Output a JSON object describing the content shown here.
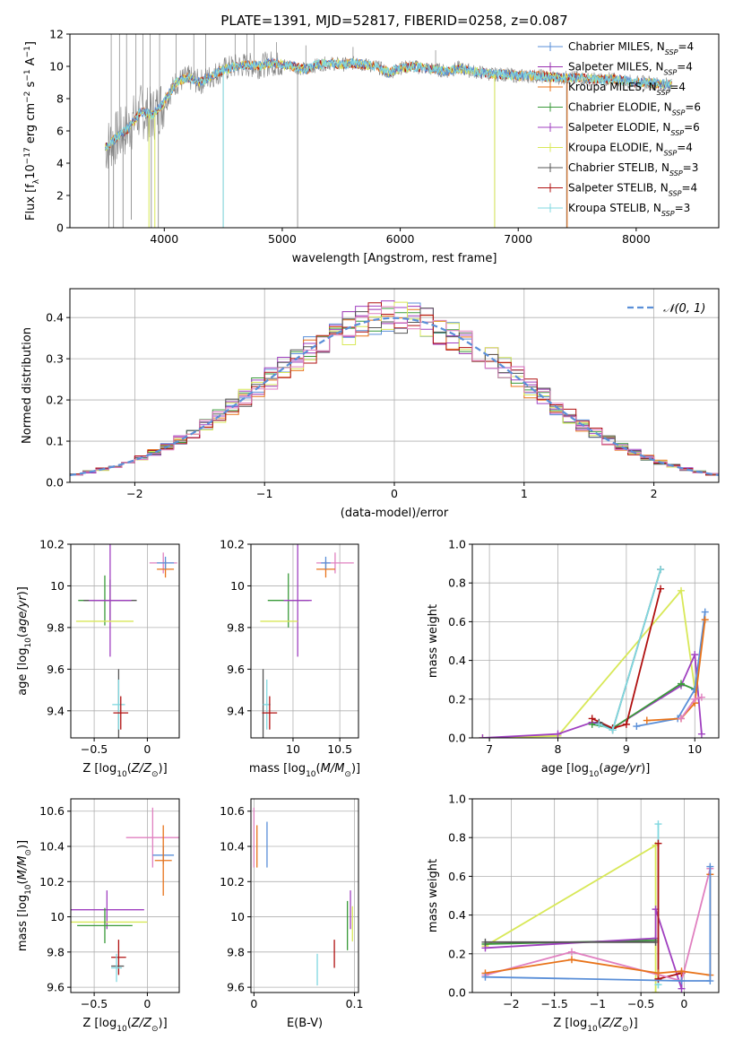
{
  "figure_title": "PLATE=1391, MJD=52817, FIBERID=0258, z=0.087",
  "colors": {
    "Chabrier MILES": "#5a8fd8",
    "Salpeter MILES": "#9a30b0",
    "Kroupa MILES": "#e8731a",
    "Chabrier ELODIE": "#3a9a3a",
    "Salpeter ELODIE": "#a040c0",
    "Kroupa ELODIE": "#d8e858",
    "Chabrier STELIB": "#555555",
    "Salpeter STELIB": "#b01010",
    "Kroupa STELIB": "#80d8e0",
    "pinkish": "#e080c0",
    "data_gray": "#808080",
    "normal_dash": "#5a8fd8"
  },
  "chart_data": [
    {
      "id": "spectrum",
      "type": "line",
      "title": "PLATE=1391, MJD=52817, FIBERID=0258, z=0.087",
      "xlabel": "wavelength [Angstrom, rest frame]",
      "ylabel_parts": [
        "Flux [f",
        "λ",
        "10",
        "−17",
        " erg cm",
        "−2",
        " s",
        "−1",
        " A",
        "−1",
        "]"
      ],
      "xlim": [
        3200,
        8700
      ],
      "ylim": [
        0,
        12
      ],
      "xticks": [
        4000,
        5000,
        6000,
        7000,
        8000
      ],
      "yticks": [
        0,
        2,
        4,
        6,
        8,
        10,
        12
      ],
      "grid": false,
      "legend_position": "top-right",
      "continuum": [
        [
          3500,
          5.0
        ],
        [
          3600,
          5.6
        ],
        [
          3700,
          6.2
        ],
        [
          3800,
          7.2
        ],
        [
          3900,
          7.0
        ],
        [
          4000,
          7.8
        ],
        [
          4100,
          9.0
        ],
        [
          4200,
          9.3
        ],
        [
          4300,
          9.0
        ],
        [
          4400,
          9.4
        ],
        [
          4500,
          9.8
        ],
        [
          4600,
          10.0
        ],
        [
          4700,
          10.1
        ],
        [
          4800,
          10.0
        ],
        [
          4900,
          10.2
        ],
        [
          5000,
          10.1
        ],
        [
          5100,
          10.0
        ],
        [
          5200,
          9.8
        ],
        [
          5300,
          10.1
        ],
        [
          5400,
          10.2
        ],
        [
          5500,
          10.1
        ],
        [
          5600,
          10.2
        ],
        [
          5700,
          10.1
        ],
        [
          5800,
          10.0
        ],
        [
          5900,
          9.6
        ],
        [
          6000,
          9.9
        ],
        [
          6100,
          10.0
        ],
        [
          6200,
          9.9
        ],
        [
          6300,
          9.8
        ],
        [
          6400,
          9.7
        ],
        [
          6500,
          9.9
        ],
        [
          6600,
          9.7
        ],
        [
          6700,
          9.6
        ],
        [
          6800,
          9.5
        ],
        [
          6900,
          9.5
        ],
        [
          7000,
          9.4
        ],
        [
          7100,
          9.4
        ],
        [
          7200,
          9.4
        ],
        [
          7300,
          9.3
        ],
        [
          7400,
          9.3
        ],
        [
          7500,
          9.3
        ],
        [
          7600,
          9.2
        ],
        [
          7700,
          9.2
        ],
        [
          7800,
          9.2
        ],
        [
          7900,
          9.1
        ],
        [
          8000,
          9.0
        ],
        [
          8100,
          9.0
        ],
        [
          8200,
          8.9
        ],
        [
          8300,
          8.9
        ]
      ],
      "data_spikes_down": [
        [
          3530,
          0
        ],
        [
          3570,
          0
        ],
        [
          3650,
          0
        ],
        [
          3720,
          0.5
        ],
        [
          3890,
          0
        ],
        [
          3950,
          0
        ],
        [
          4500,
          0
        ],
        [
          5130,
          0
        ],
        [
          6800,
          0
        ],
        [
          7410,
          0
        ]
      ],
      "data_spikes_up": [
        [
          3550,
          12
        ],
        [
          3620,
          12
        ],
        [
          3680,
          12
        ],
        [
          3760,
          12
        ],
        [
          3820,
          12
        ],
        [
          3880,
          12
        ],
        [
          3960,
          12
        ],
        [
          4100,
          12
        ],
        [
          4250,
          12
        ],
        [
          4350,
          12
        ],
        [
          4600,
          12
        ],
        [
          4700,
          12
        ],
        [
          4760,
          12
        ],
        [
          4950,
          11.5
        ],
        [
          5200,
          11.3
        ],
        [
          5600,
          11.2
        ],
        [
          6300,
          11.0
        ]
      ],
      "legend": [
        {
          "name": "Chabrier MILES, N",
          "sub": "SSP",
          "tail": "=4",
          "key": "Chabrier MILES"
        },
        {
          "name": "Salpeter MILES, N",
          "sub": "SSP",
          "tail": "=4",
          "key": "Salpeter MILES"
        },
        {
          "name": "Kroupa MILES, N",
          "sub": "SSP",
          "tail": "=4",
          "key": "Kroupa MILES"
        },
        {
          "name": "Chabrier ELODIE, N",
          "sub": "SSP",
          "tail": "=6",
          "key": "Chabrier ELODIE"
        },
        {
          "name": "Salpeter ELODIE, N",
          "sub": "SSP",
          "tail": "=6",
          "key": "Salpeter ELODIE"
        },
        {
          "name": "Kroupa ELODIE, N",
          "sub": "SSP",
          "tail": "=4",
          "key": "Kroupa ELODIE"
        },
        {
          "name": "Chabrier STELIB, N",
          "sub": "SSP",
          "tail": "=3",
          "key": "Chabrier STELIB"
        },
        {
          "name": "Salpeter STELIB, N",
          "sub": "SSP",
          "tail": "=4",
          "key": "Salpeter STELIB"
        },
        {
          "name": "Kroupa STELIB, N",
          "sub": "SSP",
          "tail": "=3",
          "key": "Kroupa STELIB"
        }
      ]
    },
    {
      "id": "residuals",
      "type": "histogram",
      "xlabel": "(data-model)/error",
      "ylabel": "Normed distribution",
      "xlim": [
        -2.5,
        2.5
      ],
      "ylim": [
        0,
        0.47
      ],
      "xticks": [
        -2,
        -1,
        0,
        1,
        2
      ],
      "yticks": [
        0.0,
        0.1,
        0.2,
        0.3,
        0.4
      ],
      "grid": true,
      "bin_width": 0.1,
      "legend_position": "top-right",
      "legend_label": "𝒩(0, 1)",
      "series_keys": [
        "Chabrier MILES",
        "Salpeter MILES",
        "Kroupa MILES",
        "Chabrier ELODIE",
        "Salpeter ELODIE",
        "Kroupa ELODIE",
        "Chabrier STELIB",
        "Salpeter STELIB",
        "pinkish"
      ]
    },
    {
      "id": "age_vs_Z",
      "type": "errorbar",
      "xlabel": "Z [log10(Z/Z⊙)]",
      "ylabel": "age  [log10(age/yr)]",
      "xlim": [
        -0.72,
        0.3
      ],
      "ylim": [
        9.27,
        10.2
      ],
      "xticks": [
        -0.5,
        0.0
      ],
      "yticks": [
        9.4,
        9.6,
        9.8,
        10.0,
        10.2
      ],
      "grid": true,
      "points": [
        {
          "key": "pinkish",
          "x": 0.15,
          "y": 10.11,
          "xerr": 0.13,
          "yerr": 0.05
        },
        {
          "key": "Kroupa MILES",
          "x": 0.17,
          "y": 10.08,
          "xerr": 0.08,
          "yerr": 0.04
        },
        {
          "key": "Chabrier MILES",
          "x": 0.17,
          "y": 10.11,
          "xerr": 0.08,
          "yerr": 0.03
        },
        {
          "key": "Chabrier ELODIE",
          "x": -0.4,
          "y": 9.93,
          "xerr": 0.25,
          "yerr": 0.12
        },
        {
          "key": "Chabrier STELIB",
          "x": -0.35,
          "y": 9.93,
          "xerr": 0.25,
          "yerr": 0.1
        },
        {
          "key": "Salpeter ELODIE",
          "x": -0.35,
          "y": 9.93,
          "xerr": 0.2,
          "yerr": 0.27
        },
        {
          "key": "Kroupa ELODIE",
          "x": -0.4,
          "y": 9.83,
          "xerr": 0.27,
          "yerr": 0.0
        },
        {
          "key": "Chabrier STELIB",
          "x": -0.27,
          "y": 9.43,
          "xerr": 0.0,
          "yerr": 0.17
        },
        {
          "key": "Kroupa STELIB",
          "x": -0.27,
          "y": 9.43,
          "xerr": 0.06,
          "yerr": 0.12
        },
        {
          "key": "Salpeter STELIB",
          "x": -0.25,
          "y": 9.39,
          "xerr": 0.07,
          "yerr": 0.08
        }
      ]
    },
    {
      "id": "age_vs_mass",
      "type": "errorbar",
      "xlabel": "mass [log10(M/M⊙)]",
      "xlim": [
        9.55,
        10.7
      ],
      "ylim": [
        9.27,
        10.2
      ],
      "xticks": [
        10.0,
        10.5
      ],
      "yticks": [
        9.4,
        9.6,
        9.8,
        10.0,
        10.2
      ],
      "grid": true,
      "points": [
        {
          "key": "pinkish",
          "x": 10.45,
          "y": 10.11,
          "xerr": 0.2,
          "yerr": 0.05
        },
        {
          "key": "Kroupa MILES",
          "x": 10.35,
          "y": 10.08,
          "xerr": 0.1,
          "yerr": 0.04
        },
        {
          "key": "Chabrier MILES",
          "x": 10.35,
          "y": 10.11,
          "xerr": 0.05,
          "yerr": 0.03
        },
        {
          "key": "Chabrier ELODIE",
          "x": 9.95,
          "y": 9.93,
          "xerr": 0.22,
          "yerr": 0.13
        },
        {
          "key": "Salpeter ELODIE",
          "x": 10.05,
          "y": 9.93,
          "xerr": 0.15,
          "yerr": 0.27
        },
        {
          "key": "Kroupa ELODIE",
          "x": 9.85,
          "y": 9.83,
          "xerr": 0.2,
          "yerr": 0.0
        },
        {
          "key": "Chabrier STELIB",
          "x": 9.68,
          "y": 9.43,
          "xerr": 0.0,
          "yerr": 0.17
        },
        {
          "key": "Kroupa STELIB",
          "x": 9.72,
          "y": 9.43,
          "xerr": 0.04,
          "yerr": 0.12
        },
        {
          "key": "Salpeter STELIB",
          "x": 9.75,
          "y": 9.39,
          "xerr": 0.08,
          "yerr": 0.08
        }
      ]
    },
    {
      "id": "weight_vs_age",
      "type": "line",
      "xlabel": "age  [log10(age/yr)]",
      "ylabel": "mass weight",
      "xlim": [
        6.75,
        10.35
      ],
      "ylim": [
        0,
        1.0
      ],
      "xticks": [
        7,
        8,
        9,
        10
      ],
      "yticks": [
        0.0,
        0.2,
        0.4,
        0.6,
        0.8,
        1.0
      ],
      "grid": true,
      "series": [
        {
          "key": "Kroupa ELODIE",
          "x": [
            6.9,
            8.0,
            9.8,
            10.0
          ],
          "y": [
            0.0,
            0.01,
            0.76,
            0.25
          ]
        },
        {
          "key": "Salpeter ELODIE",
          "x": [
            6.9,
            8.0,
            8.5,
            8.8,
            9.8,
            10.0,
            10.1
          ],
          "y": [
            0.0,
            0.02,
            0.08,
            0.05,
            0.27,
            0.43,
            0.02
          ]
        },
        {
          "key": "Chabrier ELODIE",
          "x": [
            8.5,
            8.8,
            9.8,
            10.0
          ],
          "y": [
            0.07,
            0.05,
            0.28,
            0.25
          ]
        },
        {
          "key": "Salpeter STELIB",
          "x": [
            8.5,
            8.8,
            9.0,
            9.5
          ],
          "y": [
            0.1,
            0.05,
            0.07,
            0.77
          ]
        },
        {
          "key": "Chabrier STELIB",
          "x": [
            8.6,
            8.8,
            9.5
          ],
          "y": [
            0.08,
            0.04,
            0.87
          ]
        },
        {
          "key": "Kroupa STELIB",
          "x": [
            8.6,
            8.8,
            9.5
          ],
          "y": [
            0.07,
            0.04,
            0.87
          ]
        },
        {
          "key": "Chabrier MILES",
          "x": [
            9.15,
            9.75,
            10.0,
            10.15
          ],
          "y": [
            0.06,
            0.1,
            0.25,
            0.65
          ]
        },
        {
          "key": "Kroupa MILES",
          "x": [
            9.3,
            9.8,
            10.0,
            10.15
          ],
          "y": [
            0.09,
            0.1,
            0.18,
            0.61
          ]
        },
        {
          "key": "pinkish",
          "x": [
            9.8,
            10.0,
            10.1
          ],
          "y": [
            0.1,
            0.2,
            0.21
          ]
        }
      ]
    },
    {
      "id": "mass_vs_Z",
      "type": "errorbar",
      "xlabel": "Z [log10(Z/Z⊙)]",
      "ylabel": "mass [log10(M/M⊙)]",
      "xlim": [
        -0.72,
        0.3
      ],
      "ylim": [
        9.57,
        10.67
      ],
      "xticks": [
        -0.5,
        0.0
      ],
      "yticks": [
        9.6,
        9.8,
        10.0,
        10.2,
        10.4,
        10.6
      ],
      "grid": true,
      "points": [
        {
          "key": "pinkish",
          "x": 0.05,
          "y": 10.45,
          "xerr": 0.25,
          "yerr": 0.17
        },
        {
          "key": "Chabrier MILES",
          "x": 0.15,
          "y": 10.35,
          "xerr": 0.1,
          "yerr": 0.05
        },
        {
          "key": "Kroupa MILES",
          "x": 0.15,
          "y": 10.32,
          "xerr": 0.08,
          "yerr": 0.2
        },
        {
          "key": "Salpeter ELODIE",
          "x": -0.38,
          "y": 10.04,
          "xerr": 0.35,
          "yerr": 0.11
        },
        {
          "key": "Kroupa ELODIE",
          "x": -0.36,
          "y": 9.97,
          "xerr": 0.36,
          "yerr": 0.0
        },
        {
          "key": "Chabrier ELODIE",
          "x": -0.4,
          "y": 9.95,
          "xerr": 0.26,
          "yerr": 0.1
        },
        {
          "key": "Salpeter STELIB",
          "x": -0.27,
          "y": 9.77,
          "xerr": 0.07,
          "yerr": 0.1
        },
        {
          "key": "Chabrier STELIB",
          "x": -0.28,
          "y": 9.72,
          "xerr": 0.06,
          "yerr": 0.0
        },
        {
          "key": "Kroupa STELIB",
          "x": -0.29,
          "y": 9.71,
          "xerr": 0.05,
          "yerr": 0.08
        }
      ]
    },
    {
      "id": "mass_vs_ebv",
      "type": "errorbar",
      "xlabel": "E(B-V)",
      "xlim": [
        -0.003,
        0.104
      ],
      "ylim": [
        9.57,
        10.67
      ],
      "xticks": [
        0.0,
        0.1
      ],
      "yticks": [
        9.6,
        9.8,
        10.0,
        10.2,
        10.4,
        10.6
      ],
      "grid": true,
      "points": [
        {
          "key": "pinkish",
          "x": 0.0,
          "y": 10.45,
          "xerr": 0.0,
          "yerr": 0.17
        },
        {
          "key": "Kroupa MILES",
          "x": 0.003,
          "y": 10.4,
          "xerr": 0.0,
          "yerr": 0.12
        },
        {
          "key": "Chabrier MILES",
          "x": 0.013,
          "y": 10.41,
          "xerr": 0.0,
          "yerr": 0.13
        },
        {
          "key": "Kroupa STELIB",
          "x": 0.063,
          "y": 9.7,
          "xerr": 0.0,
          "yerr": 0.09
        },
        {
          "key": "Salpeter STELIB",
          "x": 0.08,
          "y": 9.79,
          "xerr": 0.0,
          "yerr": 0.08
        },
        {
          "key": "Chabrier ELODIE",
          "x": 0.093,
          "y": 9.95,
          "xerr": 0.0,
          "yerr": 0.14
        },
        {
          "key": "Salpeter ELODIE",
          "x": 0.096,
          "y": 10.04,
          "xerr": 0.0,
          "yerr": 0.11
        },
        {
          "key": "Kroupa ELODIE",
          "x": 0.098,
          "y": 9.96,
          "xerr": 0.0,
          "yerr": 0.1
        }
      ]
    },
    {
      "id": "weight_vs_Z",
      "type": "line",
      "xlabel": "Z [log10(Z/Z⊙)]",
      "ylabel": "mass weight",
      "xlim": [
        -2.45,
        0.4
      ],
      "ylim": [
        0,
        1.0
      ],
      "xticks": [
        -2.0,
        -1.5,
        -1.0,
        -0.5,
        0.0
      ],
      "yticks": [
        0.0,
        0.2,
        0.4,
        0.6,
        0.8,
        1.0
      ],
      "grid": true,
      "series": [
        {
          "key": "Kroupa ELODIE",
          "x": [
            -2.3,
            -0.33,
            -0.33
          ],
          "y": [
            0.24,
            0.76,
            0.0
          ]
        },
        {
          "key": "Chabrier ELODIE",
          "x": [
            -2.3,
            -0.33
          ],
          "y": [
            0.25,
            0.27
          ]
        },
        {
          "key": "Salpeter ELODIE",
          "x": [
            -2.3,
            -0.33,
            -0.33,
            -0.03,
            -0.03
          ],
          "y": [
            0.23,
            0.28,
            0.43,
            0.02,
            0.1
          ]
        },
        {
          "key": "Chabrier STELIB",
          "x": [
            -2.3,
            -0.33
          ],
          "y": [
            0.26,
            0.26
          ]
        },
        {
          "key": "Kroupa STELIB",
          "x": [
            -0.3,
            -0.3,
            -0.3
          ],
          "y": [
            0.04,
            0.87,
            0.04
          ]
        },
        {
          "key": "Salpeter STELIB",
          "x": [
            -0.3,
            -0.3,
            -0.03
          ],
          "y": [
            0.77,
            0.07,
            0.1
          ]
        },
        {
          "key": "pinkish",
          "x": [
            -2.3,
            -1.3,
            -0.03,
            0.3
          ],
          "y": [
            0.09,
            0.21,
            0.06,
            0.64
          ]
        },
        {
          "key": "Kroupa MILES",
          "x": [
            -2.3,
            -1.3,
            -0.3,
            -0.03,
            0.3,
            0.3
          ],
          "y": [
            0.1,
            0.17,
            0.1,
            0.11,
            0.09,
            0.61
          ]
        },
        {
          "key": "Chabrier MILES",
          "x": [
            -2.3,
            -0.03,
            0.3,
            0.3
          ],
          "y": [
            0.08,
            0.06,
            0.06,
            0.65
          ]
        }
      ]
    }
  ]
}
